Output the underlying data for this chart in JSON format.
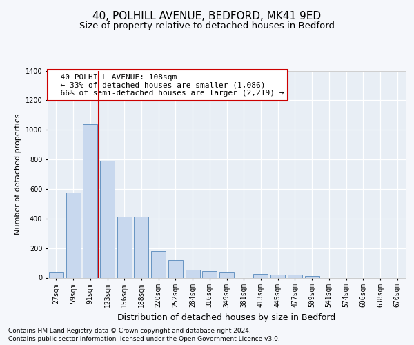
{
  "title1": "40, POLHILL AVENUE, BEDFORD, MK41 9ED",
  "title2": "Size of property relative to detached houses in Bedford",
  "xlabel": "Distribution of detached houses by size in Bedford",
  "ylabel": "Number of detached properties",
  "categories": [
    "27sqm",
    "59sqm",
    "91sqm",
    "123sqm",
    "156sqm",
    "188sqm",
    "220sqm",
    "252sqm",
    "284sqm",
    "316sqm",
    "349sqm",
    "381sqm",
    "413sqm",
    "445sqm",
    "477sqm",
    "509sqm",
    "541sqm",
    "574sqm",
    "606sqm",
    "638sqm",
    "670sqm"
  ],
  "values": [
    40,
    575,
    1040,
    790,
    415,
    415,
    180,
    120,
    55,
    45,
    40,
    0,
    25,
    20,
    20,
    10,
    0,
    0,
    0,
    0,
    0
  ],
  "bar_color": "#c8d8ee",
  "bar_edge_color": "#5588bb",
  "vline_color": "#cc0000",
  "vline_x": 2.48,
  "annotation_text": "  40 POLHILL AVENUE: 108sqm\n  ← 33% of detached houses are smaller (1,086)\n  66% of semi-detached houses are larger (2,219) →",
  "annotation_box_color": "#ffffff",
  "annotation_box_edge": "#cc0000",
  "footer1": "Contains HM Land Registry data © Crown copyright and database right 2024.",
  "footer2": "Contains public sector information licensed under the Open Government Licence v3.0.",
  "ylim": [
    0,
    1400
  ],
  "yticks": [
    0,
    200,
    400,
    600,
    800,
    1000,
    1200,
    1400
  ],
  "fig_bg_color": "#f5f7fb",
  "plot_bg_color": "#e8eef5",
  "grid_color": "#ffffff",
  "title1_fontsize": 11,
  "title2_fontsize": 9.5,
  "xlabel_fontsize": 9,
  "ylabel_fontsize": 8,
  "tick_fontsize": 7,
  "footer_fontsize": 6.5,
  "ann_fontsize": 8
}
